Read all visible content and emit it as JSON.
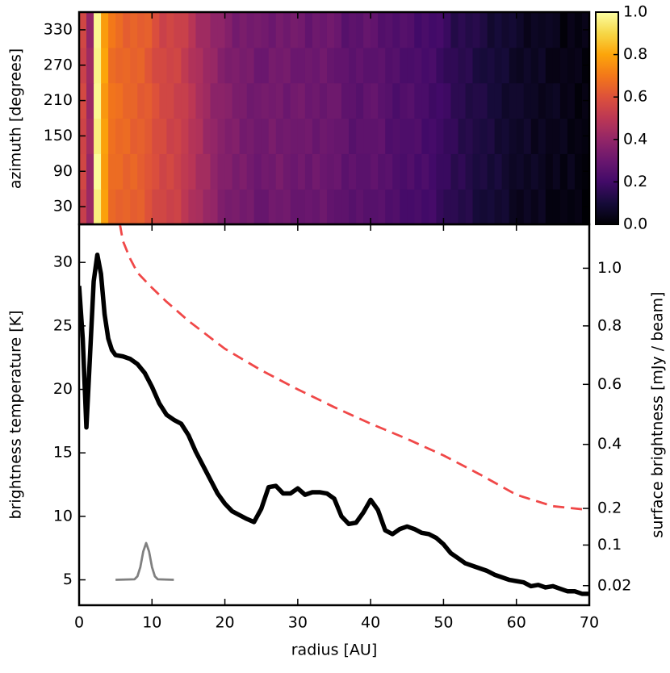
{
  "chart_data": [
    {
      "type": "heatmap",
      "ylabel": "azimuth [degrees]",
      "colormap": "inferno",
      "xlim": [
        0,
        70
      ],
      "xticks": [
        0,
        10,
        20,
        30,
        40,
        50,
        60,
        70
      ],
      "ylim": [
        0,
        360
      ],
      "yticks": [
        30,
        90,
        150,
        210,
        270,
        330
      ],
      "zlim": [
        0,
        1
      ],
      "zticks": [
        {
          "value": 0,
          "label": "0.0"
        },
        0.2,
        0.4,
        0.6,
        0.8,
        {
          "value": 1,
          "label": "1.0"
        }
      ],
      "z": [
        [
          0.53,
          0.42,
          0.96,
          0.79,
          0.66,
          0.64,
          0.65,
          0.63,
          0.64,
          0.6,
          0.56,
          0.56,
          0.54,
          0.55,
          0.5,
          0.46,
          0.45,
          0.41,
          0.4,
          0.35,
          0.33,
          0.34,
          0.32,
          0.33,
          0.29,
          0.29,
          0.32,
          0.31,
          0.32,
          0.29,
          0.29,
          0.3,
          0.29,
          0.31,
          0.28,
          0.27,
          0.27,
          0.25,
          0.27,
          0.25,
          0.25,
          0.26,
          0.23,
          0.24,
          0.21,
          0.21,
          0.22,
          0.2,
          0.21,
          0.17,
          0.15,
          0.15,
          0.13,
          0.14,
          0.1,
          0.09,
          0.1,
          0.08,
          0.09,
          0.05,
          0.04,
          0.06,
          0.04,
          0.06,
          0.02,
          0.02,
          0.03,
          0.02,
          0.03,
          0
        ],
        [
          0.56,
          0.41,
          0.99,
          0.78,
          0.67,
          0.67,
          0.64,
          0.66,
          0.63,
          0.61,
          0.59,
          0.55,
          0.57,
          0.54,
          0.51,
          0.49,
          0.44,
          0.44,
          0.39,
          0.36,
          0.36,
          0.33,
          0.35,
          0.32,
          0.3,
          0.32,
          0.31,
          0.34,
          0.31,
          0.3,
          0.32,
          0.29,
          0.32,
          0.3,
          0.29,
          0.3,
          0.26,
          0.28,
          0.26,
          0.26,
          0.28,
          0.25,
          0.26,
          0.23,
          0.22,
          0.24,
          0.21,
          0.23,
          0.2,
          0.18,
          0.18,
          0.14,
          0.16,
          0.13,
          0.11,
          0.12,
          0.09,
          0.11,
          0.08,
          0.06,
          0.07,
          0.05,
          0.07,
          0.05,
          0.03,
          0.05,
          0.02,
          0.05,
          0.02,
          0.01
        ],
        [
          0.55,
          0.44,
          0.96,
          0.79,
          0.68,
          0.66,
          0.67,
          0.63,
          0.64,
          0.62,
          0.58,
          0.58,
          0.54,
          0.55,
          0.52,
          0.48,
          0.47,
          0.41,
          0.4,
          0.37,
          0.35,
          0.36,
          0.32,
          0.33,
          0.31,
          0.31,
          0.34,
          0.31,
          0.32,
          0.31,
          0.31,
          0.32,
          0.29,
          0.31,
          0.3,
          0.29,
          0.29,
          0.25,
          0.27,
          0.27,
          0.27,
          0.28,
          0.23,
          0.24,
          0.23,
          0.23,
          0.24,
          0.2,
          0.21,
          0.19,
          0.17,
          0.17,
          0.13,
          0.14,
          0.12,
          0.11,
          0.12,
          0.08,
          0.09,
          0.07,
          0.06,
          0.08,
          0.04,
          0.06,
          0.04,
          0.04,
          0.05,
          0.02,
          0.03,
          0.02
        ],
        [
          0.57,
          0.42,
          0.98,
          0.77,
          0.69,
          0.68,
          0.65,
          0.65,
          0.62,
          0.63,
          0.6,
          0.56,
          0.56,
          0.53,
          0.53,
          0.5,
          0.45,
          0.43,
          0.38,
          0.38,
          0.37,
          0.34,
          0.34,
          0.31,
          0.32,
          0.33,
          0.32,
          0.33,
          0.3,
          0.32,
          0.33,
          0.3,
          0.31,
          0.29,
          0.31,
          0.31,
          0.27,
          0.27,
          0.25,
          0.28,
          0.29,
          0.26,
          0.25,
          0.22,
          0.24,
          0.25,
          0.22,
          0.22,
          0.19,
          0.2,
          0.19,
          0.15,
          0.15,
          0.12,
          0.13,
          0.13,
          0.1,
          0.1,
          0.07,
          0.08,
          0.08,
          0.06,
          0.06,
          0.04,
          0.05,
          0.06,
          0.03,
          0.04,
          0.01,
          0.03
        ],
        [
          0.54,
          0.43,
          0.97,
          0.8,
          0.67,
          0.65,
          0.66,
          0.64,
          0.65,
          0.61,
          0.57,
          0.57,
          0.55,
          0.56,
          0.51,
          0.47,
          0.46,
          0.42,
          0.41,
          0.36,
          0.34,
          0.35,
          0.33,
          0.34,
          0.3,
          0.3,
          0.33,
          0.32,
          0.33,
          0.3,
          0.3,
          0.31,
          0.3,
          0.32,
          0.29,
          0.28,
          0.28,
          0.26,
          0.28,
          0.26,
          0.26,
          0.27,
          0.24,
          0.25,
          0.22,
          0.22,
          0.23,
          0.21,
          0.22,
          0.18,
          0.16,
          0.16,
          0.14,
          0.15,
          0.11,
          0.1,
          0.11,
          0.09,
          0.1,
          0.06,
          0.05,
          0.07,
          0.05,
          0.07,
          0.03,
          0.03,
          0.04,
          0.03,
          0.04,
          0.01
        ],
        [
          0.56,
          0.4,
          0.98,
          0.78,
          0.7,
          0.67,
          0.63,
          0.65,
          0.63,
          0.64,
          0.59,
          0.54,
          0.56,
          0.54,
          0.54,
          0.49,
          0.43,
          0.43,
          0.39,
          0.39,
          0.36,
          0.32,
          0.34,
          0.32,
          0.33,
          0.32,
          0.3,
          0.33,
          0.31,
          0.33,
          0.32,
          0.28,
          0.31,
          0.3,
          0.32,
          0.3,
          0.25,
          0.27,
          0.26,
          0.29,
          0.28,
          0.24,
          0.25,
          0.23,
          0.25,
          0.24,
          0.2,
          0.22,
          0.2,
          0.21,
          0.18,
          0.13,
          0.15,
          0.13,
          0.14,
          0.12,
          0.08,
          0.1,
          0.08,
          0.09,
          0.07,
          0.04,
          0.06,
          0.05,
          0.06,
          0.05,
          0.01,
          0.04,
          0.02,
          0.04
        ]
      ]
    },
    {
      "type": "line",
      "xlabel": "radius [AU]",
      "ylabel": "brightness temperature [K]",
      "y2label": "surface brightness [mJy / beam]",
      "xlim": [
        0,
        70
      ],
      "xticks": [
        0,
        10,
        20,
        30,
        40,
        50,
        60,
        70
      ],
      "ylim": [
        3,
        33
      ],
      "yticks": [
        5,
        10,
        15,
        20,
        25,
        30
      ],
      "y2scale": "planck",
      "y2ticks": [
        0.02,
        0.1,
        0.2,
        0.4,
        0.6,
        0.8,
        {
          "value": 1,
          "label": "1.0"
        }
      ],
      "series": [
        {
          "color": "#000000",
          "linestyle": "solid",
          "x": [
            0,
            0.5,
            1,
            1.5,
            2,
            2.5,
            3,
            3.5,
            4,
            4.5,
            5,
            6,
            7,
            8,
            9,
            10,
            11,
            12,
            13,
            14,
            15,
            16,
            17,
            18,
            19,
            20,
            21,
            22,
            23,
            24,
            25,
            26,
            27,
            28,
            29,
            30,
            31,
            32,
            33,
            34,
            35,
            36,
            37,
            38,
            39,
            40,
            41,
            42,
            43,
            44,
            45,
            46,
            47,
            48,
            49,
            50,
            51,
            52,
            53,
            54,
            55,
            56,
            57,
            58,
            59,
            60,
            61,
            62,
            63,
            64,
            65,
            66,
            67,
            68,
            69,
            70
          ],
          "values": [
            28.15,
            24.0,
            17.0,
            22.7,
            28.5,
            30.6,
            29.1,
            25.9,
            24.0,
            23.1,
            22.7,
            22.6,
            22.4,
            22.0,
            21.3,
            20.2,
            18.9,
            18.0,
            17.6,
            17.3,
            16.4,
            15.1,
            14.0,
            12.9,
            11.8,
            11.0,
            10.4,
            10.1,
            9.8,
            9.55,
            10.6,
            12.3,
            12.4,
            11.8,
            11.8,
            12.2,
            11.7,
            11.9,
            11.9,
            11.8,
            11.4,
            10.0,
            9.4,
            9.5,
            10.3,
            11.3,
            10.5,
            8.9,
            8.6,
            9.0,
            9.2,
            9.0,
            8.7,
            8.6,
            8.3,
            7.8,
            7.1,
            6.7,
            6.3,
            6.1,
            5.9,
            5.7,
            5.4,
            5.2,
            5.0,
            4.9,
            4.8,
            4.5,
            4.6,
            4.4,
            4.5,
            4.3,
            4.1,
            4.1,
            3.9,
            3.9
          ]
        },
        {
          "color": "#f04848",
          "linestyle": "dashed",
          "x": [
            5.6,
            6,
            7,
            8,
            10,
            12,
            15,
            20,
            25,
            30,
            35,
            40,
            45,
            50,
            55,
            60,
            65,
            70
          ],
          "values": [
            33.0,
            31.7,
            30.3,
            29.2,
            28.0,
            26.9,
            25.4,
            23.2,
            21.5,
            20.0,
            18.6,
            17.3,
            16.1,
            14.8,
            13.3,
            11.7,
            10.8,
            10.5
          ]
        },
        {
          "color": "#808080",
          "linestyle": "solid",
          "x": [
            5,
            7.6,
            8.0,
            8.4,
            8.8,
            9.2,
            9.6,
            10.0,
            10.4,
            10.8,
            13
          ],
          "values": [
            5,
            5.04,
            5.27,
            6.0,
            7.23,
            7.9,
            7.23,
            6.0,
            5.27,
            5.04,
            5
          ]
        }
      ]
    }
  ]
}
